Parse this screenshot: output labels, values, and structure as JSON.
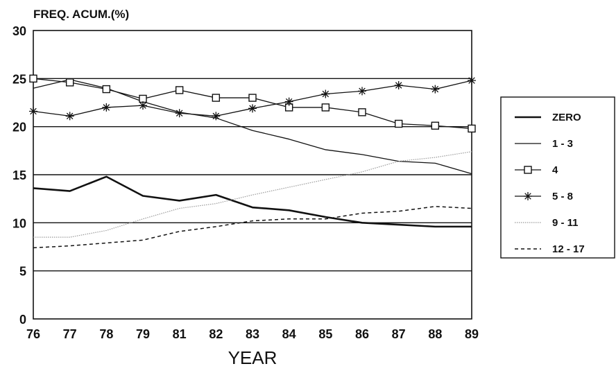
{
  "chart_data": {
    "type": "line",
    "title": "",
    "ylabel": "FREQ. ACUM.(%)",
    "xlabel": "YEAR",
    "categories": [
      "76",
      "77",
      "78",
      "79",
      "81",
      "82",
      "83",
      "84",
      "85",
      "86",
      "87",
      "88",
      "89"
    ],
    "y_ticks": [
      "0",
      "5",
      "10",
      "15",
      "20",
      "25",
      "30"
    ],
    "ylim": [
      0,
      30
    ],
    "grid": "horizontal",
    "legend_position": "right",
    "series": [
      {
        "name": "ZERO",
        "style": "thick-solid",
        "marker": "none",
        "values": [
          13.6,
          13.3,
          14.8,
          12.8,
          12.3,
          12.9,
          11.6,
          11.3,
          10.6,
          10.0,
          9.8,
          9.6,
          9.6
        ]
      },
      {
        "name": "1 - 3",
        "style": "thin-solid",
        "marker": "none",
        "values": [
          24.0,
          24.9,
          24.0,
          22.6,
          21.5,
          20.9,
          19.6,
          18.7,
          17.6,
          17.1,
          16.4,
          16.2,
          15.1
        ]
      },
      {
        "name": "4",
        "style": "thin-solid",
        "marker": "square",
        "values": [
          25.0,
          24.6,
          23.9,
          22.9,
          23.8,
          23.0,
          23.0,
          22.0,
          22.0,
          21.5,
          20.3,
          20.1,
          19.8
        ]
      },
      {
        "name": "5 - 8",
        "style": "thin-solid",
        "marker": "star",
        "values": [
          21.6,
          21.1,
          22.0,
          22.2,
          21.4,
          21.1,
          21.9,
          22.6,
          23.4,
          23.7,
          24.3,
          23.9,
          24.8
        ]
      },
      {
        "name": "9 - 11",
        "style": "dotted-light",
        "marker": "none",
        "values": [
          8.5,
          8.5,
          9.2,
          10.4,
          11.5,
          12.0,
          12.9,
          13.7,
          14.5,
          15.3,
          16.4,
          16.8,
          17.4
        ]
      },
      {
        "name": "12 - 17",
        "style": "dashed",
        "marker": "none",
        "values": [
          7.4,
          7.6,
          7.9,
          8.2,
          9.1,
          9.6,
          10.2,
          10.4,
          10.4,
          11.0,
          11.2,
          11.7,
          11.5
        ]
      }
    ]
  }
}
